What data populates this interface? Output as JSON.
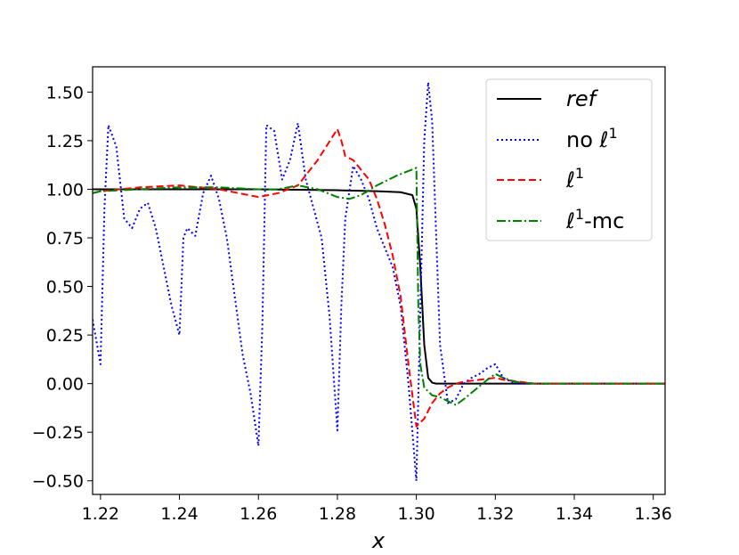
{
  "chart_data": {
    "type": "line",
    "xlabel": "x",
    "ylabel": "",
    "title": "",
    "xlim": [
      1.218,
      1.363
    ],
    "ylim": [
      -0.57,
      1.63
    ],
    "xticks": [
      1.22,
      1.24,
      1.26,
      1.28,
      1.3,
      1.32,
      1.34,
      1.36
    ],
    "xtick_labels": [
      "1.22",
      "1.24",
      "1.26",
      "1.28",
      "1.30",
      "1.32",
      "1.34",
      "1.36"
    ],
    "yticks": [
      -0.5,
      -0.25,
      0.0,
      0.25,
      0.5,
      0.75,
      1.0,
      1.25,
      1.5
    ],
    "ytick_labels": [
      "−0.50",
      "−0.25",
      "0.00",
      "0.25",
      "0.50",
      "0.75",
      "1.00",
      "1.25",
      "1.50"
    ],
    "grid": false,
    "legend_position": "upper right",
    "series": [
      {
        "name": "ref",
        "color": "#000000",
        "style": "solid",
        "x": [
          1.218,
          1.24,
          1.26,
          1.28,
          1.29,
          1.296,
          1.299,
          1.3,
          1.301,
          1.302,
          1.303,
          1.304,
          1.305,
          1.31,
          1.363
        ],
        "y": [
          1.0,
          1.0,
          1.0,
          0.995,
          0.99,
          0.985,
          0.97,
          0.9,
          0.6,
          0.2,
          0.03,
          0.005,
          0.0,
          0.0,
          0.0
        ]
      },
      {
        "name": "no ℓ¹",
        "color": "#0000ff",
        "style": "dotted",
        "x": [
          1.218,
          1.22,
          1.221,
          1.222,
          1.224,
          1.226,
          1.228,
          1.23,
          1.232,
          1.234,
          1.236,
          1.238,
          1.24,
          1.241,
          1.242,
          1.244,
          1.246,
          1.248,
          1.25,
          1.252,
          1.254,
          1.256,
          1.258,
          1.26,
          1.261,
          1.262,
          1.264,
          1.266,
          1.268,
          1.27,
          1.272,
          1.274,
          1.276,
          1.278,
          1.28,
          1.281,
          1.282,
          1.284,
          1.286,
          1.288,
          1.29,
          1.292,
          1.294,
          1.296,
          1.298,
          1.3,
          1.302,
          1.303,
          1.304,
          1.306,
          1.308,
          1.31,
          1.312,
          1.314,
          1.316,
          1.318,
          1.32,
          1.322,
          1.325,
          1.33,
          1.34,
          1.363
        ],
        "y": [
          0.33,
          0.1,
          0.9,
          1.33,
          1.22,
          0.85,
          0.8,
          0.9,
          0.93,
          0.8,
          0.6,
          0.4,
          0.25,
          0.75,
          0.8,
          0.76,
          0.98,
          1.07,
          0.95,
          0.75,
          0.45,
          0.15,
          -0.05,
          -0.32,
          0.3,
          1.33,
          1.3,
          1.05,
          1.15,
          1.34,
          1.05,
          0.9,
          0.75,
          0.35,
          -0.24,
          0.4,
          0.85,
          1.12,
          1.05,
          0.95,
          0.8,
          0.7,
          0.6,
          0.4,
          0.0,
          -0.5,
          1.25,
          1.55,
          1.35,
          0.2,
          -0.1,
          -0.08,
          0.0,
          0.03,
          0.05,
          0.08,
          0.1,
          0.03,
          0.0,
          0.0,
          0.0,
          0.0
        ]
      },
      {
        "name": "ℓ¹",
        "color": "#ff0000",
        "style": "dashed",
        "x": [
          1.218,
          1.22,
          1.23,
          1.24,
          1.25,
          1.26,
          1.265,
          1.27,
          1.275,
          1.28,
          1.281,
          1.282,
          1.284,
          1.286,
          1.288,
          1.29,
          1.292,
          1.294,
          1.296,
          1.298,
          1.3,
          1.302,
          1.304,
          1.306,
          1.308,
          1.31,
          1.312,
          1.316,
          1.32,
          1.322,
          1.326,
          1.33,
          1.34,
          1.363
        ],
        "y": [
          0.98,
          0.99,
          1.01,
          1.02,
          1.0,
          0.96,
          0.98,
          1.02,
          1.15,
          1.31,
          1.25,
          1.17,
          1.15,
          1.1,
          1.05,
          0.95,
          0.82,
          0.66,
          0.45,
          0.1,
          -0.22,
          -0.18,
          -0.1,
          -0.05,
          -0.02,
          0.0,
          0.01,
          0.02,
          0.03,
          0.02,
          0.01,
          0.0,
          0.0,
          0.0
        ]
      },
      {
        "name": "ℓ¹-mc",
        "color": "#008000",
        "style": "dashdot",
        "x": [
          1.218,
          1.22,
          1.23,
          1.24,
          1.25,
          1.26,
          1.265,
          1.27,
          1.275,
          1.28,
          1.283,
          1.286,
          1.29,
          1.295,
          1.3,
          1.3005,
          1.301,
          1.302,
          1.304,
          1.306,
          1.31,
          1.312,
          1.315,
          1.318,
          1.32,
          1.322,
          1.325,
          1.33,
          1.34,
          1.363
        ],
        "y": [
          0.98,
          0.99,
          1.0,
          1.01,
          1.01,
          1.0,
          1.0,
          1.02,
          1.0,
          0.96,
          0.95,
          0.97,
          1.02,
          1.07,
          1.11,
          0.4,
          0.1,
          -0.02,
          -0.06,
          -0.07,
          -0.11,
          -0.08,
          -0.03,
          0.02,
          0.05,
          0.03,
          0.01,
          0.0,
          0.0,
          0.0
        ]
      }
    ]
  },
  "legend": {
    "items": [
      {
        "name": "ref",
        "color": "#000000",
        "style": "solid"
      },
      {
        "name": "no ℓ¹",
        "color": "#0000ff",
        "style": "dotted"
      },
      {
        "name": "ℓ¹",
        "color": "#ff0000",
        "style": "dashed"
      },
      {
        "name": "ℓ¹-mc",
        "color": "#008000",
        "style": "dashdot"
      }
    ]
  }
}
